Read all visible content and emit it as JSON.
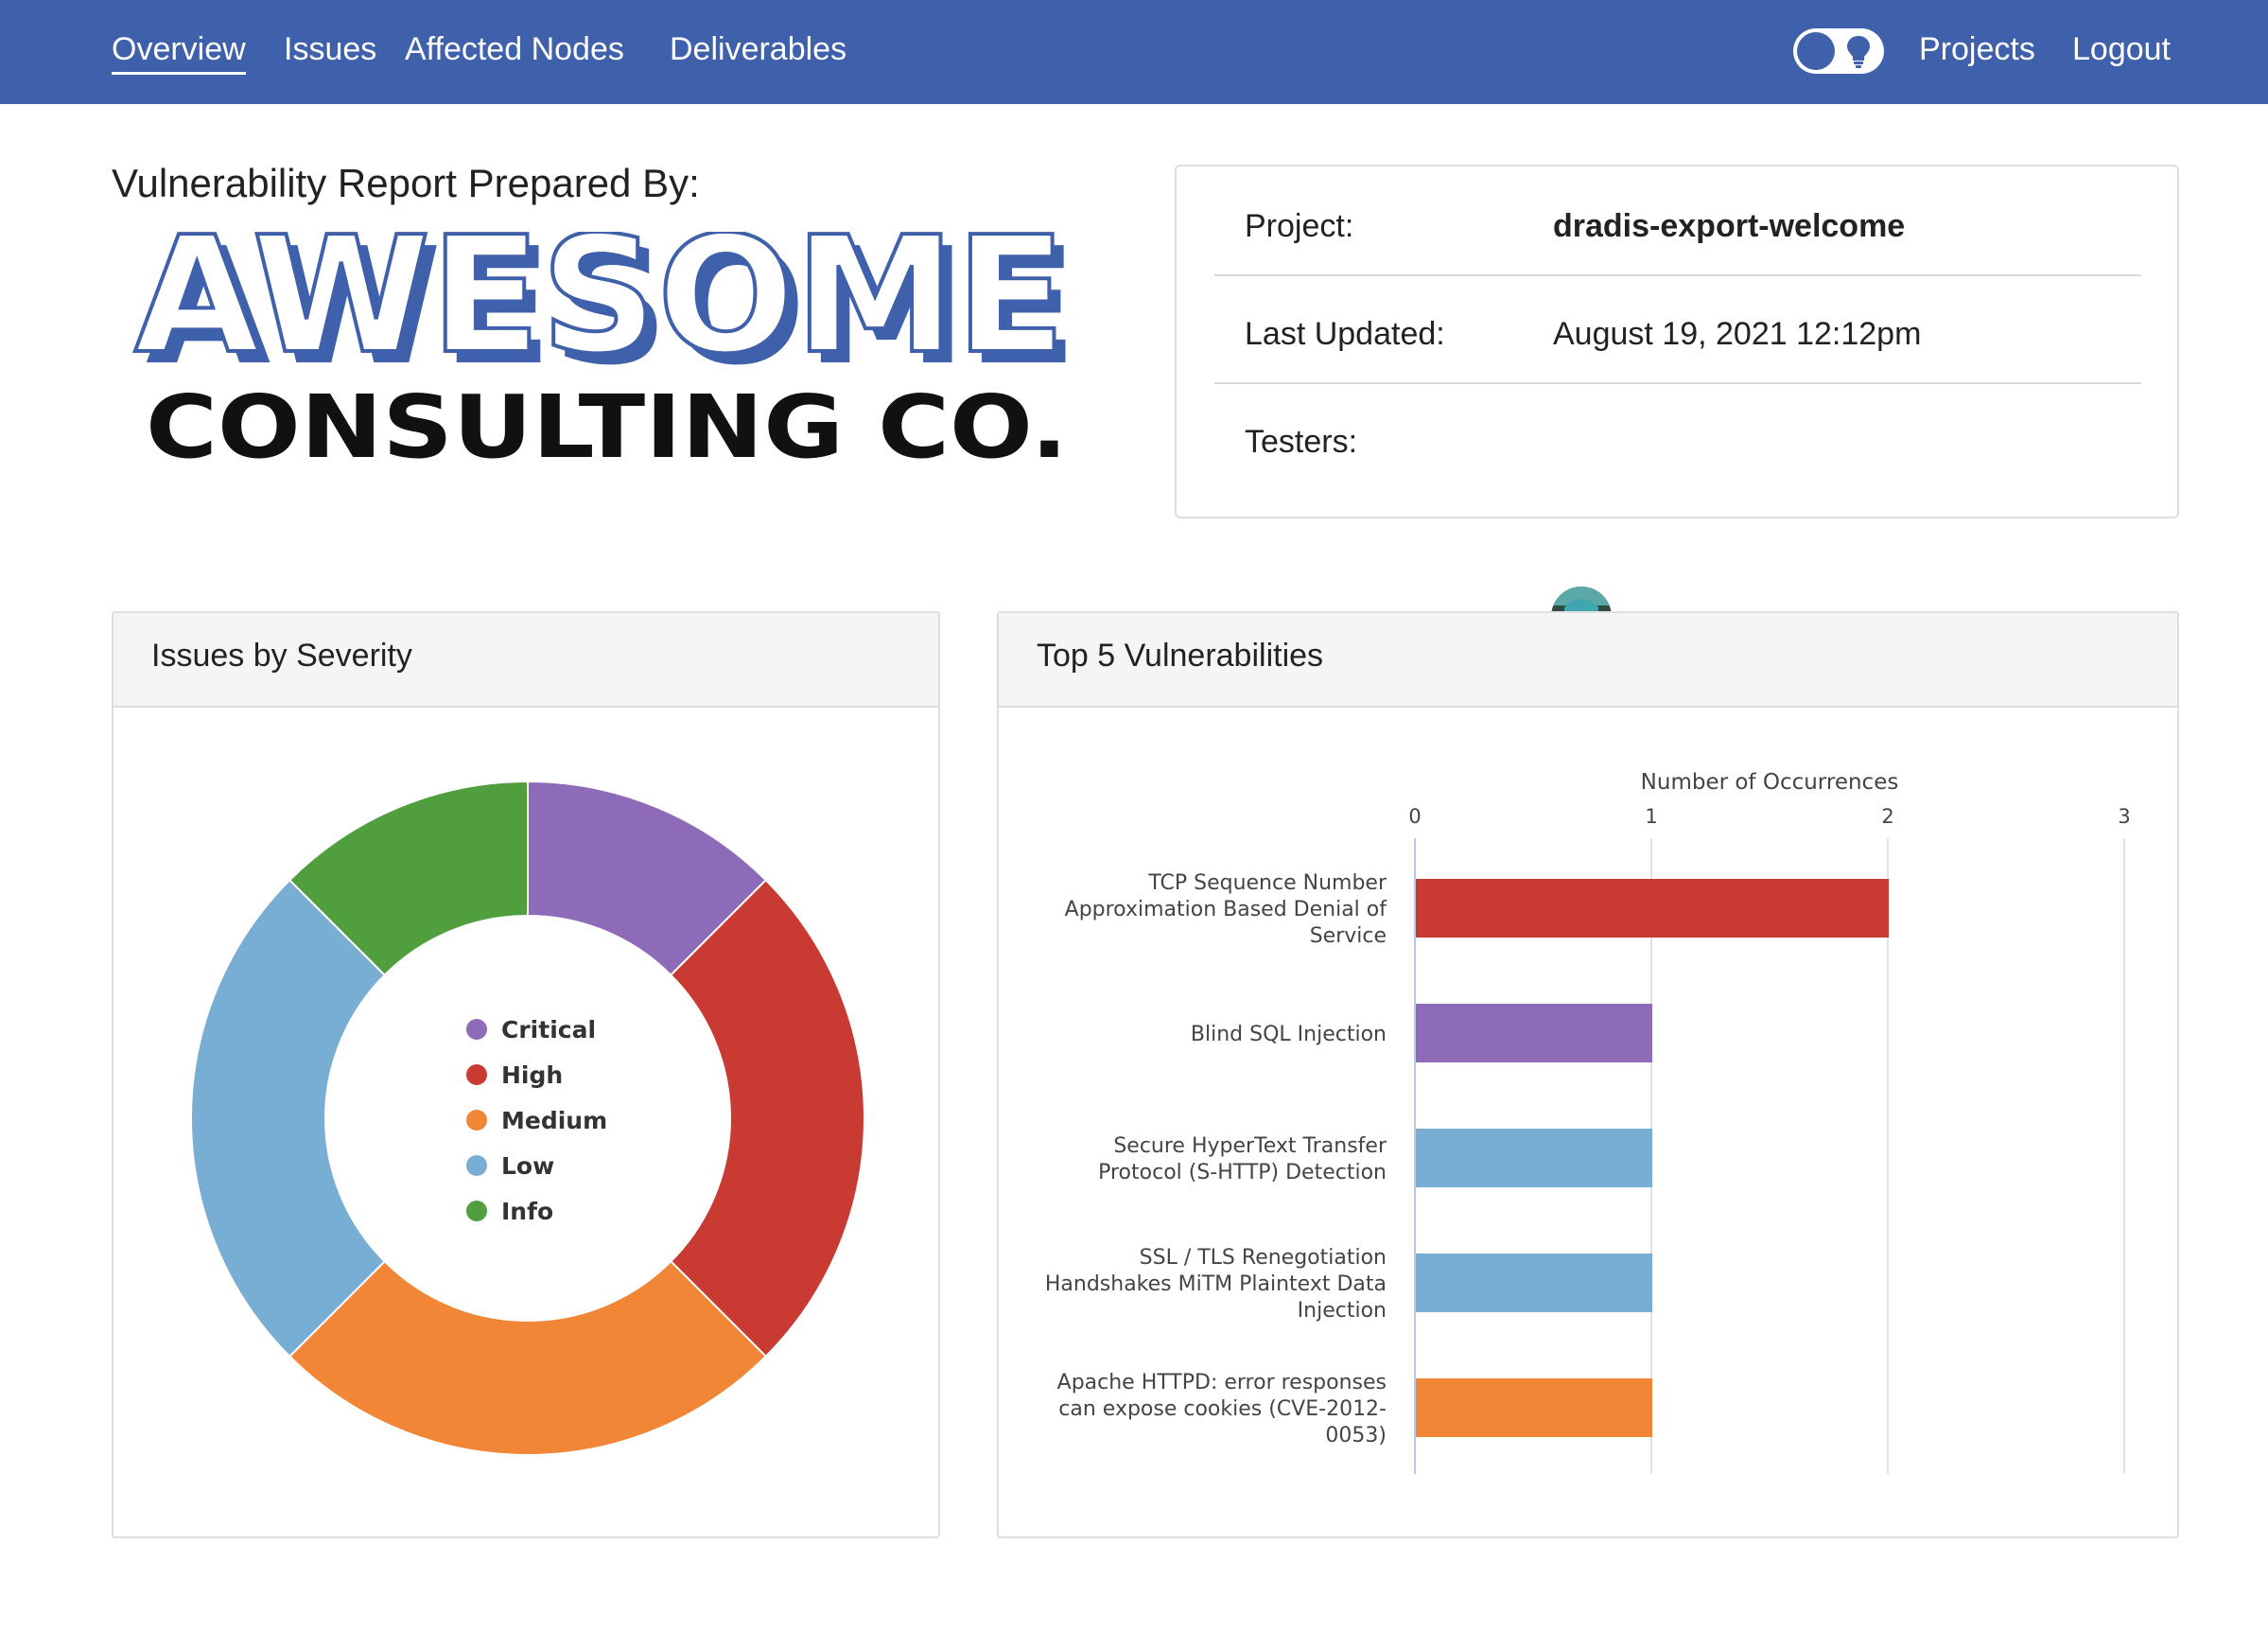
{
  "nav": {
    "links": [
      "Overview",
      "Issues",
      "Affected Nodes",
      "Deliverables"
    ],
    "active": "Overview",
    "right_links": [
      "Projects",
      "Logout"
    ],
    "toggle_icon": "lightbulb-icon"
  },
  "report": {
    "heading": "Vulnerability Report Prepared By:",
    "logo_line1": "AWESOME",
    "logo_line2": "CONSULTING CO."
  },
  "project": {
    "project_label": "Project:",
    "project_value": "dradis-export-welcome",
    "updated_label": "Last Updated:",
    "updated_value": "August 19, 2021 12:12pm",
    "testers_label": "Testers:",
    "tester_avatar": "user-avatar"
  },
  "colors": {
    "nav": "#3f60aa",
    "critical": "#8e6bb8",
    "high": "#c83a32",
    "medium": "#f08636",
    "low": "#78add4",
    "info": "#519e3e"
  },
  "severity_panel": {
    "title": "Issues by Severity"
  },
  "vuln_panel": {
    "title": "Top 5 Vulnerabilities"
  },
  "chart_data": [
    {
      "type": "pie",
      "title": "Issues by Severity",
      "donut": true,
      "legend_position": "center",
      "categories": [
        "Critical",
        "High",
        "Medium",
        "Low",
        "Info"
      ],
      "values": [
        1,
        2,
        2,
        2,
        1
      ],
      "colors": [
        "#8e6bb8",
        "#c83a32",
        "#f08636",
        "#78add4",
        "#519e3e"
      ]
    },
    {
      "type": "bar",
      "orientation": "horizontal",
      "title": "Top 5 Vulnerabilities",
      "xlabel": "Number of Occurrences",
      "xlim": [
        0,
        3
      ],
      "xticks": [
        "0",
        "1",
        "2",
        "3"
      ],
      "grid": true,
      "categories": [
        [
          "TCP Sequence Number",
          "Approximation Based Denial of",
          "Service"
        ],
        [
          "Blind SQL Injection"
        ],
        [
          "Secure HyperText Transfer",
          "Protocol (S-HTTP) Detection"
        ],
        [
          "SSL / TLS Renegotiation",
          "Handshakes MiTM Plaintext Data",
          "Injection"
        ],
        [
          "Apache HTTPD: error responses",
          "can expose cookies (CVE-2012-",
          "0053)"
        ]
      ],
      "values": [
        2,
        1,
        1,
        1,
        1
      ],
      "colors": [
        "#c83a32",
        "#8e6bb8",
        "#78add4",
        "#78add4",
        "#f08636"
      ]
    }
  ]
}
